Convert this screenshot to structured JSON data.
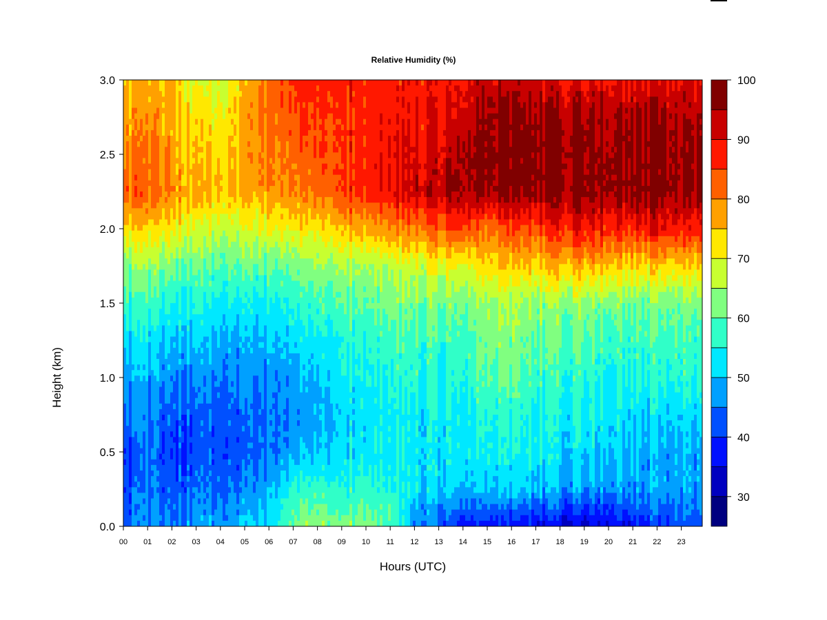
{
  "chart_data": {
    "type": "heatmap",
    "title": "Relative Humidity (%)",
    "xlabel": "Hours (UTC)",
    "ylabel": "Height (km)",
    "xlim": [
      0,
      23.87
    ],
    "ylim": [
      0,
      3.0
    ],
    "x_tick_labels": [
      "00",
      "01",
      "02",
      "03",
      "04",
      "05",
      "06",
      "07",
      "08",
      "09",
      "10",
      "11",
      "12",
      "13",
      "14",
      "15",
      "16",
      "17",
      "18",
      "19",
      "20",
      "21",
      "22",
      "23"
    ],
    "y_tick_values": [
      0.0,
      0.5,
      1.0,
      1.5,
      2.0,
      2.5,
      3.0
    ],
    "y_tick_labels": [
      "0.0",
      "0.5",
      "1.0",
      "1.5",
      "2.0",
      "2.5",
      "3.0"
    ],
    "colorbar": {
      "range": [
        25,
        100
      ],
      "step": 5,
      "tick_values": [
        30,
        40,
        50,
        60,
        70,
        80,
        90,
        100
      ],
      "tick_labels": [
        "30",
        "40",
        "50",
        "60",
        "70",
        "80",
        "90",
        "100"
      ],
      "colors": [
        "#000080",
        "#0000C0",
        "#0010FF",
        "#0050FF",
        "#00A0FF",
        "#00E8FF",
        "#30FFC8",
        "#80FF80",
        "#C8FF30",
        "#FFE800",
        "#FFA000",
        "#FF6000",
        "#FF1800",
        "#C80000",
        "#800000"
      ]
    },
    "grid_hours": [
      0,
      1,
      2,
      3,
      4,
      5,
      6,
      7,
      8,
      9,
      10,
      11,
      12,
      13,
      14,
      15,
      16,
      17,
      18,
      19,
      20,
      21,
      22,
      23
    ],
    "grid_heights_km": [
      0,
      0.25,
      0.5,
      0.75,
      1.0,
      1.25,
      1.5,
      1.75,
      2.0,
      2.25,
      2.5,
      2.75,
      3.0
    ],
    "rh_grid": [
      [
        42,
        40,
        38,
        44,
        46,
        50,
        56,
        62,
        72,
        82,
        78,
        76,
        74
      ],
      [
        45,
        44,
        44,
        45,
        48,
        52,
        57,
        63,
        72,
        82,
        80,
        78,
        76
      ],
      [
        46,
        42,
        40,
        43,
        46,
        50,
        55,
        62,
        72,
        80,
        78,
        76,
        76
      ],
      [
        48,
        44,
        42,
        43,
        46,
        50,
        55,
        60,
        68,
        76,
        74,
        72,
        68
      ],
      [
        48,
        44,
        42,
        43,
        45,
        50,
        54,
        60,
        68,
        76,
        74,
        72,
        68
      ],
      [
        50,
        45,
        42,
        43,
        45,
        48,
        53,
        60,
        68,
        76,
        76,
        76,
        74
      ],
      [
        52,
        48,
        44,
        44,
        46,
        49,
        54,
        60,
        70,
        78,
        80,
        82,
        82
      ],
      [
        62,
        56,
        48,
        46,
        48,
        52,
        56,
        62,
        72,
        80,
        82,
        84,
        86
      ],
      [
        64,
        58,
        50,
        48,
        50,
        53,
        58,
        64,
        72,
        82,
        84,
        86,
        88
      ],
      [
        62,
        56,
        52,
        52,
        54,
        56,
        60,
        66,
        76,
        86,
        86,
        86,
        88
      ],
      [
        64,
        58,
        54,
        54,
        55,
        57,
        61,
        66,
        78,
        88,
        88,
        88,
        88
      ],
      [
        60,
        56,
        54,
        54,
        56,
        58,
        62,
        67,
        80,
        90,
        90,
        88,
        88
      ],
      [
        46,
        52,
        52,
        53,
        56,
        58,
        62,
        68,
        80,
        92,
        90,
        88,
        88
      ],
      [
        44,
        52,
        53,
        54,
        56,
        58,
        62,
        70,
        84,
        94,
        92,
        90,
        88
      ],
      [
        38,
        50,
        53,
        54,
        56,
        58,
        62,
        70,
        86,
        96,
        96,
        92,
        90
      ],
      [
        38,
        50,
        54,
        56,
        60,
        62,
        64,
        73,
        80,
        96,
        97,
        96,
        92
      ],
      [
        36,
        50,
        54,
        56,
        60,
        62,
        65,
        74,
        84,
        97,
        97,
        96,
        92
      ],
      [
        36,
        50,
        54,
        55,
        58,
        60,
        64,
        74,
        84,
        97,
        97,
        96,
        92
      ],
      [
        35,
        48,
        52,
        54,
        57,
        60,
        64,
        76,
        88,
        97,
        97,
        96,
        90
      ],
      [
        34,
        48,
        52,
        54,
        57,
        60,
        64,
        76,
        90,
        97,
        97,
        96,
        90
      ],
      [
        36,
        48,
        52,
        54,
        56,
        58,
        63,
        76,
        88,
        97,
        97,
        96,
        90
      ],
      [
        38,
        48,
        50,
        52,
        56,
        58,
        62,
        74,
        88,
        97,
        97,
        96,
        90
      ],
      [
        40,
        48,
        48,
        52,
        56,
        58,
        62,
        74,
        90,
        97,
        97,
        96,
        90
      ],
      [
        42,
        48,
        48,
        52,
        56,
        58,
        62,
        74,
        88,
        96,
        96,
        94,
        90
      ]
    ]
  }
}
